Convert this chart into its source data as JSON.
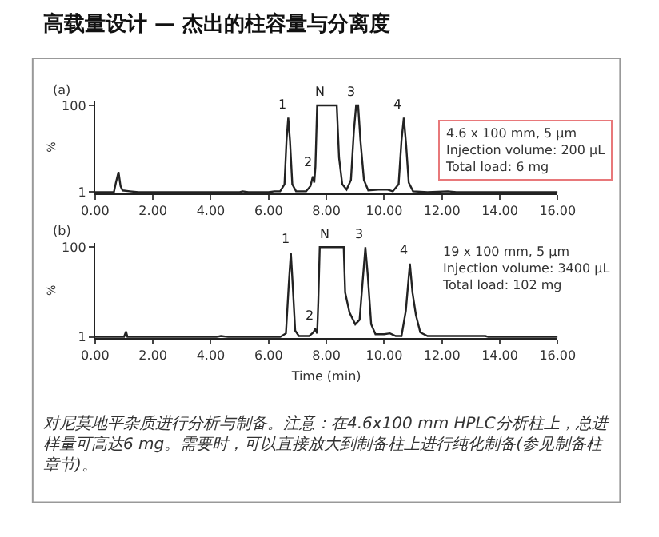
{
  "chart_data": [
    {
      "type": "line",
      "title": "高载量设计 — 杰出的柱容量与分离度",
      "ylabel": "%",
      "xlim": [
        0,
        16
      ],
      "ylim": [
        0,
        105
      ],
      "marker": "none",
      "xticks": [
        {
          "value": 0,
          "label": "0.00"
        },
        {
          "value": 2,
          "label": "2.00"
        },
        {
          "value": 4,
          "label": "4.00"
        },
        {
          "value": 6,
          "label": "6.00"
        },
        {
          "value": 8,
          "label": "8.00"
        },
        {
          "value": 10,
          "label": "10.00"
        },
        {
          "value": 12,
          "label": "12.00"
        },
        {
          "value": 14,
          "label": "14.00"
        },
        {
          "value": 16,
          "label": "16.00"
        }
      ],
      "yticks": [
        1,
        100
      ],
      "line_style": "solid",
      "series": [
        {
          "color": "#222222",
          "x": [
            0,
            0.65,
            0.72,
            0.81,
            0.88,
            0.95,
            1.2,
            1.5,
            3,
            5.0,
            5.1,
            5.3,
            6.0,
            6.2,
            6.4,
            6.55,
            6.62,
            6.68,
            6.74,
            6.82,
            6.95,
            7.3,
            7.45,
            7.53,
            7.58,
            7.62,
            7.68,
            8.36,
            8.44,
            8.55,
            8.7,
            8.85,
            8.95,
            9.03,
            9.1,
            9.18,
            9.3,
            9.45,
            9.8,
            10.1,
            10.3,
            10.5,
            10.6,
            10.68,
            10.76,
            10.85,
            11.0,
            11.5,
            12.2,
            12.5,
            13.8,
            16
          ],
          "values": [
            1,
            1,
            12,
            24,
            8,
            3,
            2,
            1,
            1,
            1,
            2,
            1,
            1,
            2,
            2,
            10,
            60,
            86,
            60,
            10,
            2,
            2,
            8,
            19,
            12,
            30,
            100,
            100,
            40,
            10,
            4,
            15,
            70,
            100,
            100,
            60,
            15,
            3,
            4,
            4,
            2,
            10,
            60,
            86,
            55,
            12,
            2,
            1,
            2,
            1,
            1,
            1
          ]
        }
      ],
      "annotations": [
        "(a)",
        "4.6 x 100 mm, 5 µm\nInjection volume: 200 µL\nTotal load: 6 mg",
        {
          "text": "1",
          "x": 6.68,
          "y": 86
        },
        {
          "text": "2",
          "x": 7.53,
          "y": 19
        },
        {
          "text": "N",
          "x": 8.02,
          "y": 100
        },
        {
          "text": "3",
          "x": 9.07,
          "y": 100
        },
        {
          "text": "4",
          "x": 10.68,
          "y": 86
        }
      ]
    },
    {
      "type": "line",
      "xlabel": "Time (min)",
      "ylabel": "%",
      "xlim": [
        0,
        16
      ],
      "ylim": [
        0,
        105
      ],
      "marker": "none",
      "xticks": [
        {
          "value": 0,
          "label": "0.00"
        },
        {
          "value": 2,
          "label": "2.00"
        },
        {
          "value": 4,
          "label": "4.00"
        },
        {
          "value": 6,
          "label": "6.00"
        },
        {
          "value": 8,
          "label": "8.00"
        },
        {
          "value": 10,
          "label": "10.00"
        },
        {
          "value": 12,
          "label": "12.00"
        },
        {
          "value": 14,
          "label": "14.00"
        },
        {
          "value": 16,
          "label": "16.00"
        }
      ],
      "yticks": [
        1,
        100
      ],
      "line_style": "solid",
      "series": [
        {
          "color": "#222222",
          "x": [
            0,
            1.0,
            1.07,
            1.12,
            4.2,
            4.35,
            4.6,
            4.8,
            6.4,
            6.6,
            6.7,
            6.77,
            6.84,
            6.92,
            7.05,
            7.4,
            7.55,
            7.61,
            7.68,
            7.72,
            7.77,
            8.6,
            8.65,
            8.8,
            9.0,
            9.15,
            9.25,
            9.35,
            9.43,
            9.55,
            9.7,
            10.0,
            10.2,
            10.4,
            10.6,
            10.75,
            10.89,
            10.98,
            11.1,
            11.25,
            11.5,
            12,
            13.5,
            13.6,
            16
          ],
          "values": [
            1,
            1,
            7,
            1,
            1,
            2,
            1,
            1,
            1,
            5,
            60,
            94,
            55,
            8,
            2,
            2,
            6,
            10,
            5,
            40,
            100,
            100,
            50,
            28,
            15,
            20,
            60,
            100,
            70,
            15,
            4,
            4,
            5,
            2,
            2,
            30,
            82,
            50,
            25,
            6,
            2,
            2,
            2,
            1,
            1
          ]
        }
      ],
      "annotations": [
        "(b)",
        "19 x 100 mm, 5 µm\nInjection volume: 3400 µL\nTotal load: 102 mg",
        {
          "text": "1",
          "x": 6.77,
          "y": 94
        },
        {
          "text": "2",
          "x": 7.61,
          "y": 10
        },
        {
          "text": "N",
          "x": 8.18,
          "y": 100
        },
        {
          "text": "3",
          "x": 9.35,
          "y": 100
        },
        {
          "text": "4",
          "x": 10.89,
          "y": 82
        },
        "对尼莫地平杂质进行分析与制备。注意：在4.6x100 mm HPLC分析柱上，总进样量可高达6 mg。需要时，可以直接放大到制备柱上进行纯化制备(参见制备柱章节)。"
      ]
    }
  ]
}
